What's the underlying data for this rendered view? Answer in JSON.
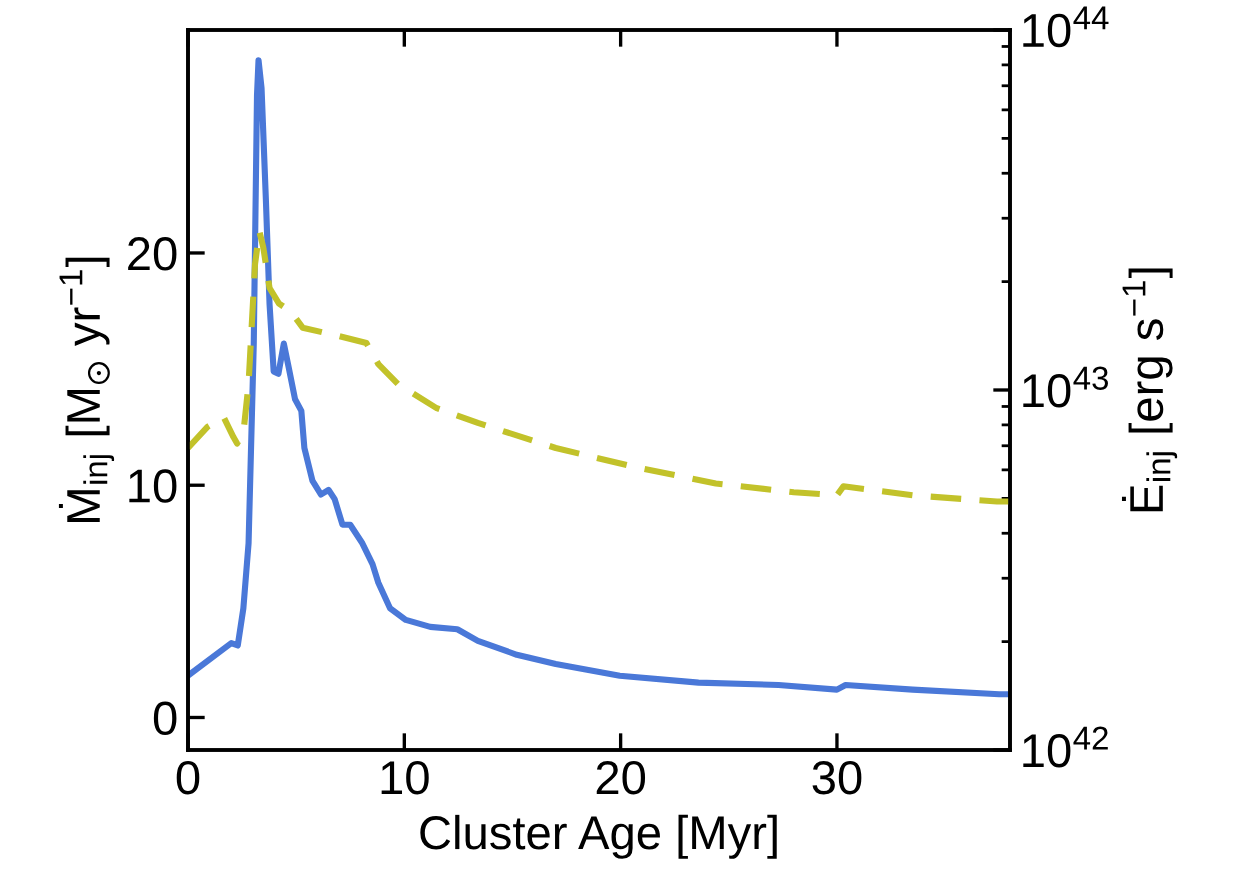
{
  "chart_data": {
    "type": "line",
    "xlabel": "Cluster Age [Myr]",
    "ylabel": "Ṁ$_{inj}$ [M$_{⊙}$ yr$^{−1}$]",
    "y2label": "Ė$_{inj}$ [erg s$^{−1}$]",
    "xlim": [
      0,
      38
    ],
    "xticks": [
      0,
      10,
      20,
      30
    ],
    "ylim": [
      -1.4,
      29.6
    ],
    "yticks": [
      0,
      10,
      20
    ],
    "y2lim": [
      1e+42,
      1e+44
    ],
    "y2ticks": [
      {
        "value": 1e+42,
        "label": "10$^{42}$"
      },
      {
        "value": 1e+43,
        "label": "10$^{43}$"
      },
      {
        "value": 1e+44,
        "label": "10$^{44}$"
      }
    ],
    "log": "y2",
    "series": [
      {
        "color": "#4a78d8",
        "line_style": "solid",
        "x": [
          0,
          2.0,
          2.3,
          2.56,
          2.8,
          3.04,
          3.19,
          3.26,
          3.4,
          3.6,
          3.77,
          3.96,
          4.18,
          4.43,
          4.65,
          4.95,
          5.24,
          5.38,
          5.75,
          6.15,
          6.5,
          6.78,
          7.14,
          7.5,
          8.06,
          8.53,
          8.8,
          9.34,
          10.07,
          11.2,
          12.45,
          13.4,
          15.2,
          17.0,
          19.96,
          23.6,
          27.3,
          30.0,
          30.4,
          33.5,
          37.5,
          38
        ],
        "values": [
          1.8,
          3.2,
          3.1,
          4.7,
          7.5,
          16.1,
          26.8,
          28.3,
          27.1,
          22.3,
          17.8,
          14.9,
          14.8,
          16.1,
          15.1,
          13.7,
          13.2,
          11.6,
          10.2,
          9.6,
          9.8,
          9.4,
          8.3,
          8.3,
          7.5,
          6.6,
          5.8,
          4.7,
          4.2,
          3.9,
          3.8,
          3.3,
          2.7,
          2.3,
          1.8,
          1.5,
          1.4,
          1.2,
          1.4,
          1.2,
          1.0,
          1.0
        ]
      },
      {
        "color": "#c2c22a",
        "line_style": "dashed",
        "axis": "y2",
        "x": [
          0,
          0.9,
          1.65,
          2.1,
          2.27,
          2.56,
          2.8,
          3.1,
          3.3,
          3.48,
          3.77,
          4.2,
          4.76,
          5.3,
          6.8,
          8.25,
          8.8,
          9.7,
          11.5,
          13.4,
          17.0,
          20.7,
          24.4,
          28.0,
          30.0,
          30.3,
          33.5,
          37.4,
          38
        ],
        "values": [
          6.9e+42,
          7.9e+42,
          8.4e+42,
          7.4e+42,
          7.1e+42,
          7.6e+42,
          1.04e+43,
          2.24e+43,
          2.76e+43,
          2.49e+43,
          1.92e+43,
          1.74e+43,
          1.65e+43,
          1.49e+43,
          1.42e+43,
          1.35e+43,
          1.18e+43,
          1.04e+43,
          8.9e+42,
          8.1e+42,
          6.9e+42,
          6.1e+42,
          5.5e+42,
          5.2e+42,
          5.1e+42,
          5.4e+42,
          5.1e+42,
          4.9e+42,
          4.9e+42
        ]
      }
    ]
  }
}
